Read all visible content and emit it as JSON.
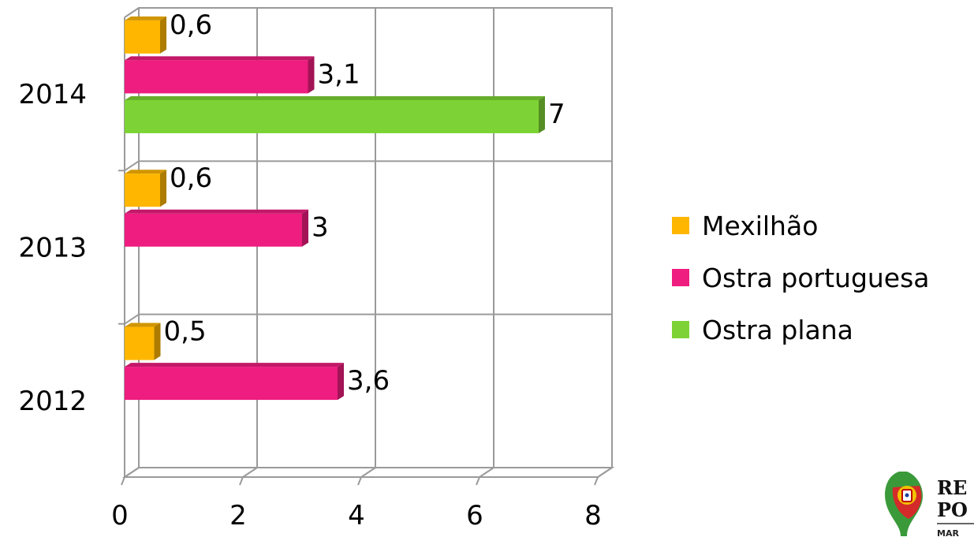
{
  "chart_data": {
    "type": "bar",
    "orientation": "horizontal",
    "categories": [
      "2012",
      "2013",
      "2014"
    ],
    "series": [
      {
        "name": "Mexilhão",
        "color": "#FFB600",
        "values": [
          0.5,
          0.6,
          0.6
        ],
        "labels": [
          "0,5",
          "0,6",
          "0,6"
        ]
      },
      {
        "name": "Ostra portuguesa",
        "color": "#EE1D7F",
        "values": [
          3.6,
          3,
          3.1
        ],
        "labels": [
          "3,6",
          "3",
          "3,1"
        ]
      },
      {
        "name": "Ostra plana",
        "color": "#7DD335",
        "values": [
          null,
          null,
          7
        ],
        "labels": [
          "",
          "",
          "7"
        ]
      }
    ],
    "x_ticks": [
      "0",
      "2",
      "4",
      "6",
      "8"
    ],
    "xlim": [
      0,
      8
    ],
    "grid": true,
    "legend_position": "right",
    "style": "3d"
  },
  "logo": {
    "icon": "portuguese-coat-of-arms-icon",
    "line1": "RE",
    "line2": "PO",
    "line3": "MAR"
  }
}
